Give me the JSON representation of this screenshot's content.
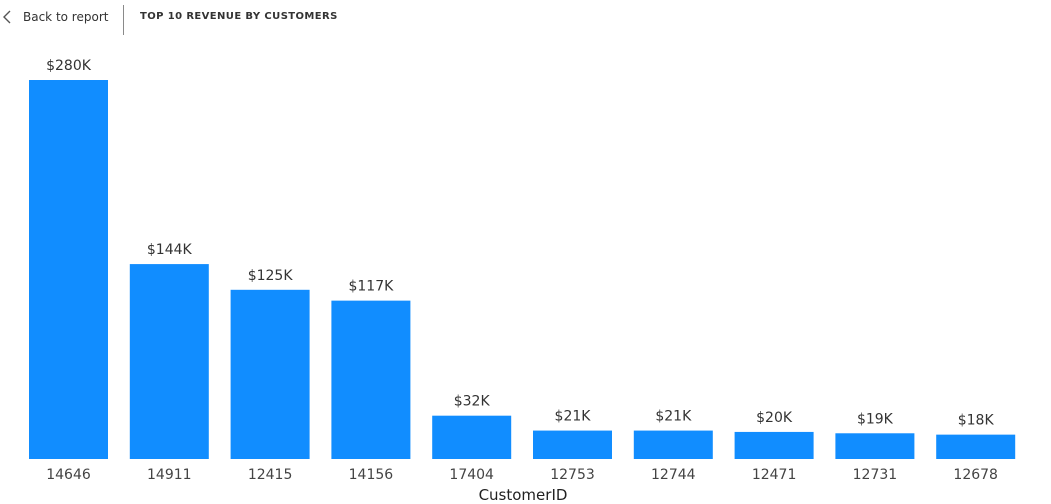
{
  "header": {
    "back_label": "Back to report",
    "title": "TOP 10 REVENUE BY CUSTOMERS"
  },
  "colors": {
    "bar": "#118DFF"
  },
  "chart_data": {
    "type": "bar",
    "categories": [
      "14646",
      "14911",
      "12415",
      "14156",
      "17404",
      "12753",
      "12744",
      "12471",
      "12731",
      "12678"
    ],
    "values": [
      280,
      144,
      125,
      117,
      32,
      21,
      21,
      20,
      19,
      18
    ],
    "data_labels": [
      "$280K",
      "$144K",
      "$125K",
      "$117K",
      "$32K",
      "$21K",
      "$21K",
      "$20K",
      "$19K",
      "$18K"
    ],
    "xlabel": "CustomerID",
    "ylabel": "",
    "ylim": [
      0,
      280
    ],
    "grid": false,
    "legend": "none"
  }
}
